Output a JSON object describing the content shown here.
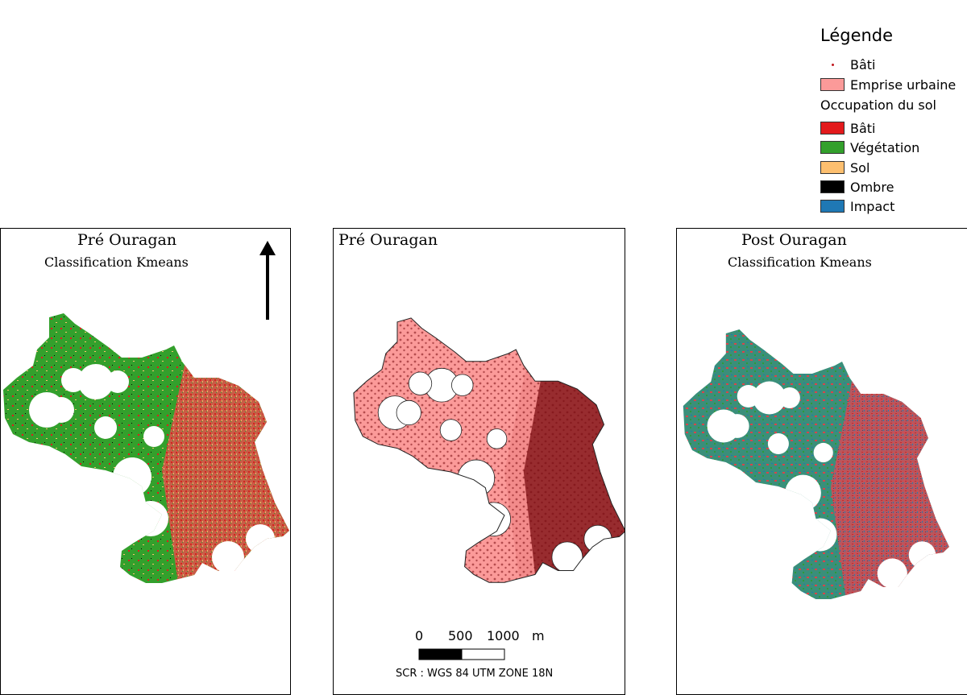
{
  "legend": {
    "title": "Légende",
    "items": [
      {
        "kind": "dot",
        "label": "Bâti",
        "color": "#c0181e"
      },
      {
        "kind": "swatch",
        "label": "Emprise urbaine",
        "color": "#fb9a99"
      }
    ],
    "section_title": "Occupation du sol",
    "classes": [
      {
        "label": "Bâti",
        "color": "#e31a1c"
      },
      {
        "label": "Végétation",
        "color": "#33a02c"
      },
      {
        "label": "Sol",
        "color": "#fdbf6f"
      },
      {
        "label": "Ombre",
        "color": "#000000"
      },
      {
        "label": "Impact",
        "color": "#1f78b4"
      }
    ]
  },
  "panels": [
    {
      "title": "Pré Ouragan",
      "subtitle": "Classification Kmeans"
    },
    {
      "title": "Pré Ouragan",
      "subtitle": ""
    },
    {
      "title": "Post Ouragan",
      "subtitle": "Classification Kmeans"
    }
  ],
  "north_arrow": {
    "icon": "north-arrow-icon"
  },
  "scale_bar": {
    "labels": [
      "0",
      "500",
      "1000"
    ],
    "unit": "m"
  },
  "crs": "SCR : WGS 84 UTM ZONE 18N"
}
